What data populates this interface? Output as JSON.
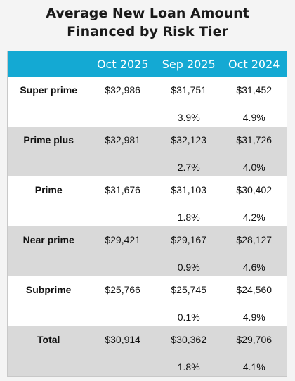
{
  "header": {
    "title": "Average New Loan Amount Financed by Risk Tier"
  },
  "table": {
    "columns": [
      "Oct 2025",
      "Sep 2025",
      "Oct 2024"
    ],
    "rows": [
      {
        "label": "Super prime",
        "values": [
          "$32,986",
          "$31,751",
          "$31,452"
        ],
        "changes": [
          "3.9%",
          "4.9%"
        ]
      },
      {
        "label": "Prime plus",
        "values": [
          "$32,981",
          "$32,123",
          "$31,726"
        ],
        "changes": [
          "2.7%",
          "4.0%"
        ]
      },
      {
        "label": "Prime",
        "values": [
          "$31,676",
          "$31,103",
          "$30,402"
        ],
        "changes": [
          "1.8%",
          "4.2%"
        ]
      },
      {
        "label": "Near prime",
        "values": [
          "$29,421",
          "$29,167",
          "$28,127"
        ],
        "changes": [
          "0.9%",
          "4.6%"
        ]
      },
      {
        "label": "Subprime",
        "values": [
          "$25,766",
          "$25,745",
          "$24,560"
        ],
        "changes": [
          "0.1%",
          "4.9%"
        ]
      },
      {
        "label": "Total",
        "values": [
          "$30,914",
          "$30,362",
          "$29,706"
        ],
        "changes": [
          "1.8%",
          "4.1%"
        ]
      }
    ]
  }
}
